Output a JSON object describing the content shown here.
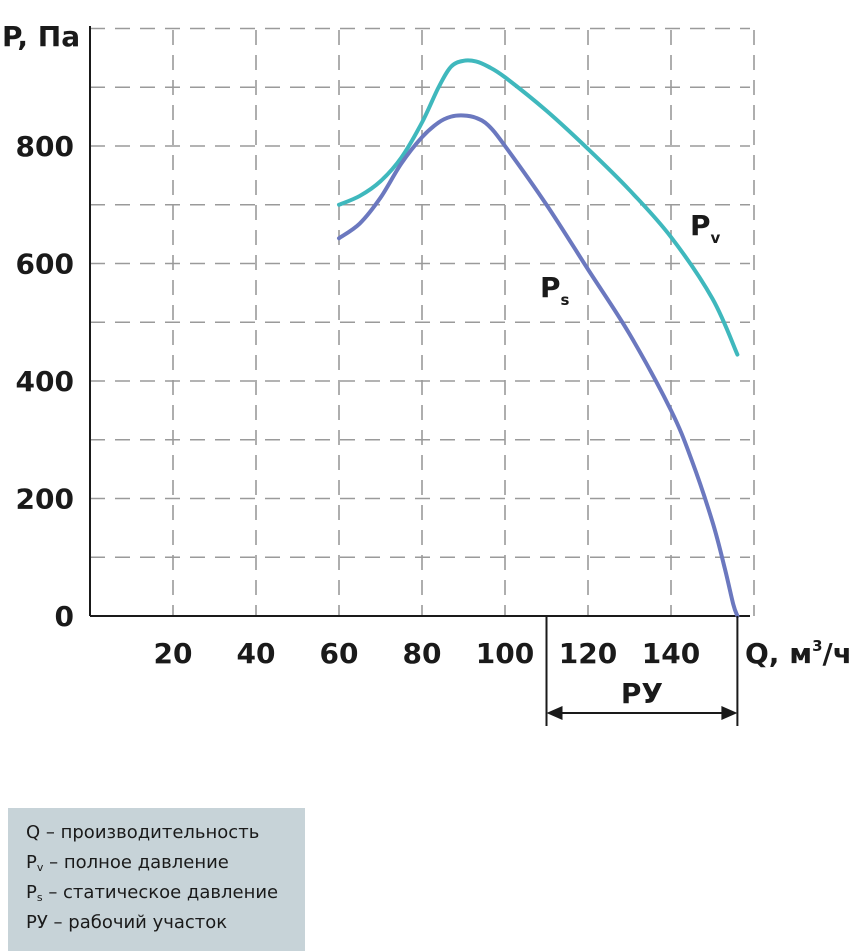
{
  "chart_data": {
    "type": "line",
    "ylabel": "P, Па",
    "xlabel": "Q, м³/ч",
    "xlabel_base": "Q, м",
    "xlabel_sup": "3",
    "xlabel_tail": "/ч",
    "ylim": [
      0,
      1000
    ],
    "xlim": [
      0,
      160
    ],
    "y_ticks": [
      "0",
      "200",
      "400",
      "600",
      "800"
    ],
    "x_ticks": [
      "20",
      "40",
      "60",
      "80",
      "100",
      "120",
      "140"
    ],
    "grid": true,
    "series": [
      {
        "name": "Pv",
        "label_main": "P",
        "label_sub": "v",
        "color": "#3fb8bd",
        "x": [
          60,
          65,
          70,
          75,
          80,
          84,
          87,
          90,
          93,
          96,
          100,
          110,
          120,
          130,
          140,
          150,
          156
        ],
        "y": [
          700,
          715,
          740,
          780,
          840,
          900,
          935,
          945,
          944,
          935,
          917,
          860,
          795,
          725,
          645,
          540,
          445
        ]
      },
      {
        "name": "Ps",
        "label_main": "P",
        "label_sub": "s",
        "color": "#6b78bf",
        "x": [
          60,
          65,
          70,
          75,
          80,
          84,
          87,
          90,
          93,
          96,
          100,
          110,
          120,
          130,
          140,
          145,
          150,
          153,
          155,
          156
        ],
        "y": [
          643,
          668,
          712,
          770,
          815,
          840,
          850,
          852,
          848,
          835,
          800,
          700,
          590,
          480,
          350,
          265,
          160,
          80,
          20,
          0
        ]
      }
    ],
    "working_range": {
      "label": "РУ",
      "x_from": 110,
      "x_to": 156
    }
  },
  "legend": {
    "rows": [
      {
        "main": "Q – производительность",
        "sub": "",
        "rest": ""
      },
      {
        "main": "P",
        "sub": "v",
        "rest": " – полное давление"
      },
      {
        "main": "P",
        "sub": "s",
        "rest": " – статическое давление"
      },
      {
        "main": "РУ – рабочий участок",
        "sub": "",
        "rest": ""
      }
    ]
  }
}
